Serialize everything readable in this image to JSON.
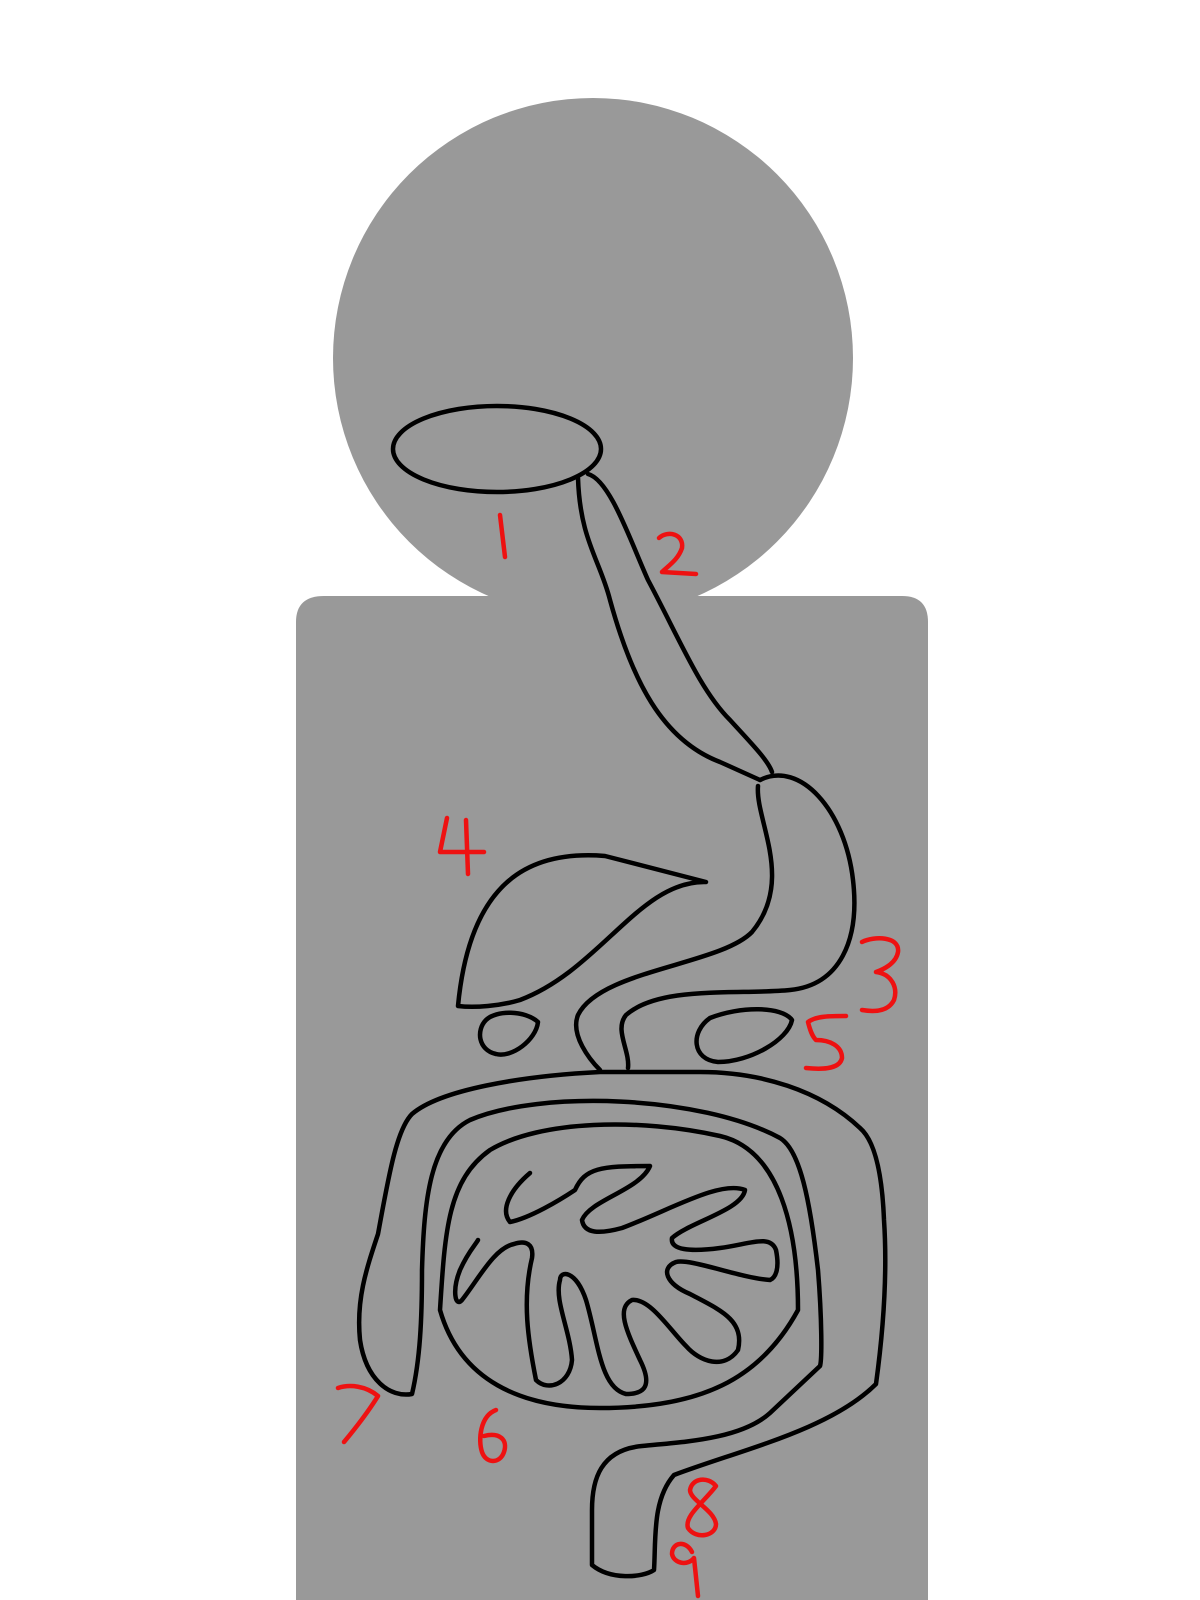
{
  "colors": {
    "background": "#ffffff",
    "silhouette": "#999999",
    "outline": "#000000",
    "label": "#ee1111"
  },
  "labels": [
    "1",
    "2",
    "3",
    "4",
    "5",
    "6",
    "7",
    "8",
    "9"
  ]
}
